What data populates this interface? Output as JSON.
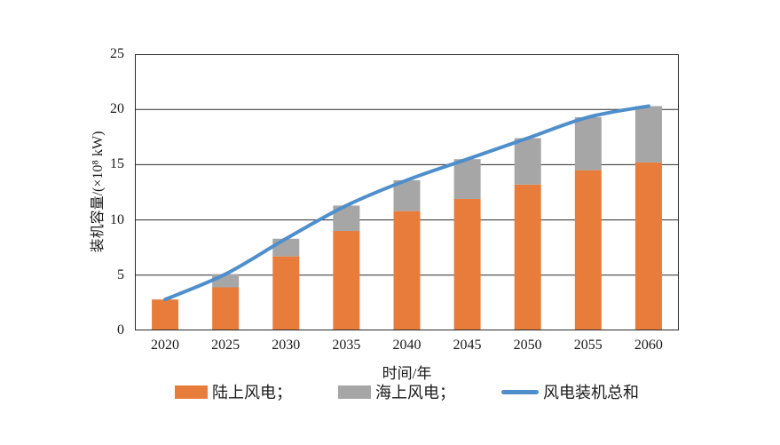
{
  "chart_data": {
    "type": "bar",
    "subtype": "stacked-bar-with-line",
    "title": "",
    "xlabel": "时间/年",
    "ylabel": "装机容量/(×10⁸ kW)",
    "categories": [
      "2020",
      "2025",
      "2030",
      "2035",
      "2040",
      "2045",
      "2050",
      "2055",
      "2060"
    ],
    "series": [
      {
        "name": "陆上风电",
        "type": "bar",
        "color": "#e87d3b",
        "values": [
          2.8,
          3.9,
          6.7,
          9.0,
          10.8,
          11.9,
          13.2,
          14.5,
          15.2
        ]
      },
      {
        "name": "海上风电",
        "type": "bar",
        "color": "#a7a6a6",
        "values": [
          0,
          1.2,
          1.6,
          2.3,
          2.8,
          3.6,
          4.2,
          4.8,
          5.1
        ]
      },
      {
        "name": "风电装机总和",
        "type": "line",
        "color": "#4e8fcb",
        "values": [
          2.8,
          5.1,
          8.3,
          11.3,
          13.6,
          15.5,
          17.4,
          19.3,
          20.3
        ]
      }
    ],
    "ylim": [
      0,
      25
    ],
    "yticks": [
      0,
      5,
      10,
      15,
      20,
      25
    ],
    "grid": "horizontal",
    "grid_color": "#2a2a2a",
    "legend_position": "bottom"
  },
  "legend": {
    "items": [
      {
        "label": "陆上风电；",
        "swatch": "bar",
        "color": "#e87d3b"
      },
      {
        "label": "海上风电；",
        "swatch": "bar",
        "color": "#a7a6a6"
      },
      {
        "label": "风电装机总和",
        "swatch": "line",
        "color": "#4e8fcb"
      }
    ]
  }
}
